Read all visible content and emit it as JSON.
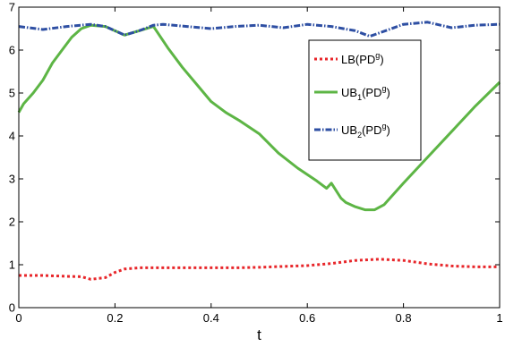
{
  "chart_data": {
    "type": "line",
    "title": "",
    "xlabel": "t",
    "ylabel": "",
    "xlim": [
      0,
      1
    ],
    "ylim": [
      0,
      7
    ],
    "xticks": [
      0,
      0.2,
      0.4,
      0.6,
      0.8,
      1
    ],
    "xtick_labels": [
      "0",
      "0.2",
      "0.4",
      "0.6",
      "0.8",
      "1"
    ],
    "yticks": [
      0,
      1,
      2,
      3,
      4,
      5,
      6,
      7
    ],
    "ytick_labels": [
      "0",
      "1",
      "2",
      "3",
      "4",
      "5",
      "6",
      "7"
    ],
    "grid": false,
    "legend_position": "top-right",
    "series": [
      {
        "name": "LB(PD^g)",
        "label_parts": [
          "LB(PD",
          "g",
          ")"
        ],
        "color": "#e8262a",
        "style": "dotted",
        "x": [
          0,
          0.05,
          0.1,
          0.13,
          0.15,
          0.18,
          0.2,
          0.22,
          0.25,
          0.3,
          0.35,
          0.4,
          0.45,
          0.5,
          0.55,
          0.6,
          0.65,
          0.7,
          0.75,
          0.8,
          0.85,
          0.9,
          0.95,
          1.0
        ],
        "y": [
          0.75,
          0.75,
          0.73,
          0.72,
          0.66,
          0.7,
          0.82,
          0.9,
          0.93,
          0.93,
          0.93,
          0.93,
          0.93,
          0.94,
          0.96,
          0.98,
          1.03,
          1.1,
          1.13,
          1.1,
          1.02,
          0.97,
          0.95,
          0.95
        ]
      },
      {
        "name": "UB1(PD^g)",
        "label_parts": [
          "UB",
          "1",
          "(PD",
          "g",
          ")"
        ],
        "color": "#5db545",
        "style": "solid",
        "x": [
          0,
          0.01,
          0.03,
          0.05,
          0.07,
          0.09,
          0.11,
          0.13,
          0.15,
          0.18,
          0.22,
          0.25,
          0.28,
          0.31,
          0.34,
          0.37,
          0.4,
          0.43,
          0.46,
          0.5,
          0.54,
          0.58,
          0.62,
          0.64,
          0.65,
          0.67,
          0.68,
          0.7,
          0.72,
          0.74,
          0.76,
          0.8,
          0.85,
          0.9,
          0.95,
          1.0
        ],
        "y": [
          4.55,
          4.75,
          5.0,
          5.3,
          5.7,
          6.0,
          6.3,
          6.5,
          6.58,
          6.55,
          6.35,
          6.45,
          6.55,
          6.05,
          5.6,
          5.2,
          4.8,
          4.55,
          4.35,
          4.05,
          3.6,
          3.25,
          2.95,
          2.78,
          2.9,
          2.55,
          2.45,
          2.35,
          2.28,
          2.28,
          2.4,
          2.9,
          3.5,
          4.1,
          4.7,
          5.25
        ]
      },
      {
        "name": "UB2(PD^g)",
        "label_parts": [
          "UB",
          "2",
          "(PD",
          "g",
          ")"
        ],
        "color": "#2e4fa3",
        "style": "dashdot",
        "x": [
          0,
          0.05,
          0.1,
          0.15,
          0.18,
          0.22,
          0.25,
          0.28,
          0.3,
          0.35,
          0.4,
          0.45,
          0.5,
          0.55,
          0.6,
          0.65,
          0.7,
          0.73,
          0.75,
          0.8,
          0.85,
          0.9,
          0.95,
          1.0
        ],
        "y": [
          6.55,
          6.48,
          6.55,
          6.6,
          6.55,
          6.35,
          6.45,
          6.58,
          6.6,
          6.55,
          6.5,
          6.55,
          6.58,
          6.52,
          6.6,
          6.55,
          6.45,
          6.32,
          6.4,
          6.6,
          6.65,
          6.52,
          6.58,
          6.6
        ]
      }
    ]
  }
}
